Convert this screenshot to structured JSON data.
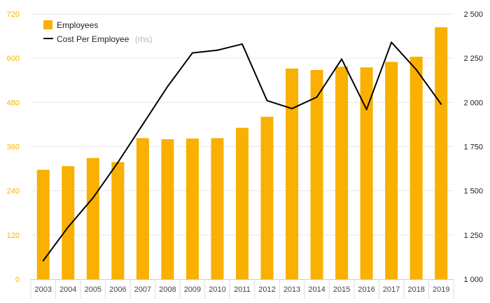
{
  "chart_data": {
    "type": "bar",
    "categories": [
      "2003",
      "2004",
      "2005",
      "2006",
      "2007",
      "2008",
      "2009",
      "2010",
      "2011",
      "2012",
      "2013",
      "2014",
      "2015",
      "2016",
      "2017",
      "2018",
      "2019"
    ],
    "series": [
      {
        "name": "Employees",
        "type": "bar",
        "axis": "left",
        "color": "#f9b000",
        "values": [
          297,
          307,
          329,
          318,
          383,
          380,
          382,
          383,
          411,
          441,
          572,
          568,
          577,
          575,
          590,
          604,
          684
        ]
      },
      {
        "name": "Cost Per Employee",
        "type": "line",
        "axis": "right",
        "color": "#000000",
        "values": [
          1105,
          1295,
          1460,
          1660,
          1875,
          2090,
          2280,
          2295,
          2330,
          2010,
          1965,
          2030,
          2245,
          1960,
          2340,
          2185,
          1990
        ]
      }
    ],
    "legend": {
      "employees_label": "Employees",
      "cost_label": "Cost Per Employee",
      "cost_suffix": "(rhs)",
      "placement": "top-left"
    },
    "y_left": {
      "ylim": [
        0,
        720
      ],
      "ticks": [
        "0",
        "120",
        "240",
        "360",
        "480",
        "600",
        "720"
      ]
    },
    "y_right": {
      "ylim": [
        1000,
        2500
      ],
      "ticks": [
        "1 000",
        "1 250",
        "1 500",
        "1 750",
        "2 000",
        "2 250",
        "2 500"
      ]
    },
    "grid": true,
    "colors": {
      "bar": "#f9b000",
      "line": "#000000",
      "left_tick": "#f2b600",
      "grid": "#e6e6e6"
    }
  }
}
